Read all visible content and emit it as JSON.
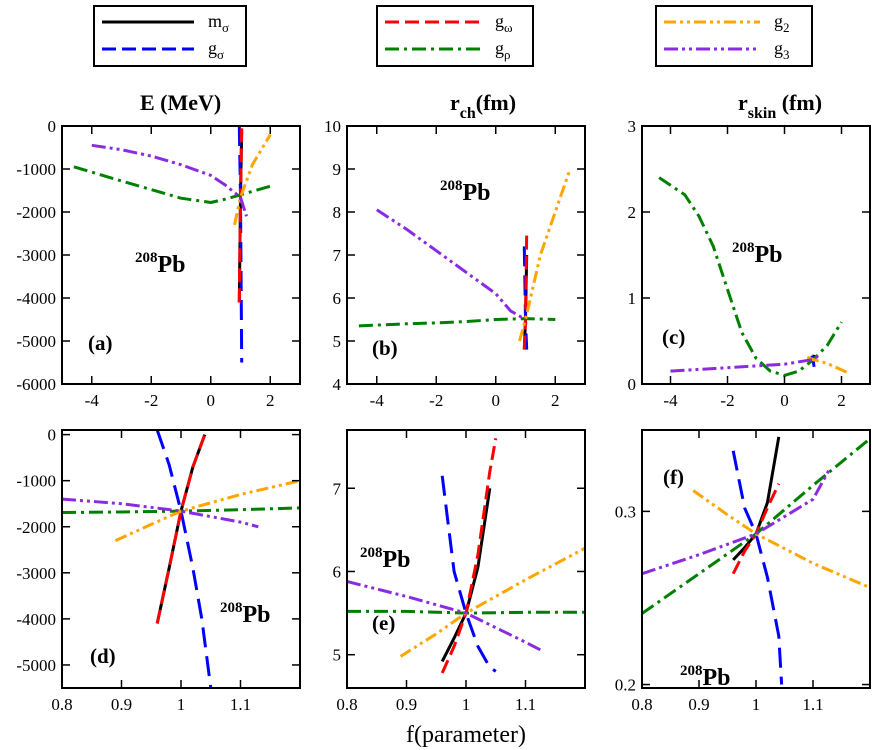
{
  "legend_groups": [
    {
      "entries": [
        {
          "base": "m",
          "sub": "σ",
          "color": "#000000",
          "dash": "solid"
        },
        {
          "base": "g",
          "sub": "σ",
          "color": "#0000ff",
          "dash": "dash"
        }
      ]
    },
    {
      "entries": [
        {
          "base": "g",
          "sub": "ω",
          "color": "#ff0000",
          "dash": "dash"
        },
        {
          "base": "g",
          "sub": "ρ",
          "color": "#008000",
          "dash": "dashdot"
        }
      ]
    },
    {
      "entries": [
        {
          "base": "g",
          "sub": "2",
          "color": "#ffa500",
          "dash": "dashdotdot"
        },
        {
          "base": "g",
          "sub": "3",
          "color": "#8a2be2",
          "dash": "dashdotdot2"
        }
      ]
    }
  ],
  "column_titles": [
    {
      "main": "E (MeV)",
      "sub": ""
    },
    {
      "main": "r",
      "sub": "ch",
      "tail": "(fm)"
    },
    {
      "main": "r",
      "sub": "skin",
      "tail": " (fm)"
    }
  ],
  "xlabel": "f(parameter)",
  "nucleus_label": {
    "sup": "208",
    "text": "Pb"
  },
  "chart_data": [
    {
      "type": "line",
      "panel_label": "(a)",
      "xlim": [
        -5,
        3
      ],
      "ylim": [
        -6000,
        0
      ],
      "xticks": [
        -4,
        -2,
        0,
        2
      ],
      "yticks": [
        0,
        -1000,
        -2000,
        -3000,
        -4000,
        -5000,
        -6000
      ],
      "series": [
        {
          "name": "m_σ",
          "x": [
            0.96,
            1.0,
            1.04
          ],
          "y": [
            -4100,
            -1660,
            -100
          ]
        },
        {
          "name": "g_σ",
          "x": [
            0.96,
            1.0,
            1.04
          ],
          "y": [
            0,
            -1660,
            -5500
          ]
        },
        {
          "name": "g_ω",
          "x": [
            0.96,
            1.0,
            1.04
          ],
          "y": [
            -4100,
            -1660,
            0
          ]
        },
        {
          "name": "g_ρ",
          "x": [
            -4.6,
            -3,
            -2,
            -1,
            0,
            0.5,
            1,
            2
          ],
          "y": [
            -950,
            -1280,
            -1480,
            -1680,
            -1780,
            -1700,
            -1600,
            -1400
          ]
        },
        {
          "name": "g_2",
          "x": [
            0.8,
            1.0,
            1.4,
            2.0
          ],
          "y": [
            -2300,
            -1660,
            -900,
            -200
          ]
        },
        {
          "name": "g_3",
          "x": [
            -4,
            -3,
            -2,
            -1,
            0,
            0.5,
            1,
            1.2
          ],
          "y": [
            -450,
            -550,
            -700,
            -900,
            -1150,
            -1380,
            -1660,
            -2100
          ]
        }
      ]
    },
    {
      "type": "line",
      "panel_label": "(b)",
      "xlim": [
        -5,
        3
      ],
      "ylim": [
        4,
        10
      ],
      "xticks": [
        -4,
        -2,
        0,
        2
      ],
      "yticks": [
        4,
        5,
        6,
        7,
        8,
        9,
        10
      ],
      "series": [
        {
          "name": "m_σ",
          "x": [
            0.96,
            1.0,
            1.04
          ],
          "y": [
            4.8,
            5.5,
            7.0
          ]
        },
        {
          "name": "g_σ",
          "x": [
            0.96,
            1.0,
            1.04
          ],
          "y": [
            7.2,
            5.5,
            4.8
          ]
        },
        {
          "name": "g_ω",
          "x": [
            0.96,
            1.0,
            1.04
          ],
          "y": [
            4.8,
            5.5,
            7.5
          ]
        },
        {
          "name": "g_ρ",
          "x": [
            -4.6,
            -3,
            -2,
            -1,
            0,
            1,
            2
          ],
          "y": [
            5.35,
            5.4,
            5.42,
            5.45,
            5.5,
            5.52,
            5.5
          ]
        },
        {
          "name": "g_2",
          "x": [
            0.8,
            1.0,
            1.5,
            2.5
          ],
          "y": [
            5.0,
            5.5,
            7.0,
            9.0
          ]
        },
        {
          "name": "g_3",
          "x": [
            -4,
            -3,
            -2,
            -1,
            0,
            0.5,
            1.0
          ],
          "y": [
            8.05,
            7.6,
            7.1,
            6.6,
            6.1,
            5.7,
            5.5
          ]
        }
      ]
    },
    {
      "type": "line",
      "panel_label": "(c)",
      "xlim": [
        -5,
        3
      ],
      "ylim": [
        0,
        3
      ],
      "xticks": [
        -4,
        -2,
        0,
        2
      ],
      "yticks": [
        0,
        1,
        2,
        3
      ],
      "series": [
        {
          "name": "m_σ",
          "x": [
            0.96,
            1.0,
            1.04
          ],
          "y": [
            0.27,
            0.285,
            0.34
          ]
        },
        {
          "name": "g_σ",
          "x": [
            0.96,
            1.0,
            1.04
          ],
          "y": [
            0.33,
            0.285,
            0.2
          ]
        },
        {
          "name": "g_ω",
          "x": [
            0.96,
            1.0,
            1.04
          ],
          "y": [
            0.26,
            0.285,
            0.31
          ]
        },
        {
          "name": "g_ρ",
          "x": [
            -4.4,
            -3.5,
            -3,
            -2.5,
            -2,
            -1.5,
            -1,
            -0.5,
            0,
            0.5,
            1,
            1.5,
            2
          ],
          "y": [
            2.4,
            2.2,
            1.95,
            1.6,
            1.1,
            0.6,
            0.3,
            0.15,
            0.1,
            0.15,
            0.28,
            0.45,
            0.72
          ]
        },
        {
          "name": "g_2",
          "x": [
            0.8,
            1.0,
            1.5,
            2.3
          ],
          "y": [
            0.31,
            0.285,
            0.24,
            0.12
          ]
        },
        {
          "name": "g_3",
          "x": [
            -4,
            -3,
            -2,
            -1,
            0,
            1,
            1.2
          ],
          "y": [
            0.15,
            0.17,
            0.19,
            0.21,
            0.23,
            0.285,
            0.33
          ]
        }
      ]
    },
    {
      "type": "line",
      "panel_label": "(d)",
      "xlim": [
        0.8,
        1.2
      ],
      "ylim": [
        -5500,
        100
      ],
      "xticks": [
        0.8,
        0.9,
        1,
        1.1
      ],
      "yticks": [
        0,
        -1000,
        -2000,
        -3000,
        -4000,
        -5000
      ],
      "series": [
        {
          "name": "m_σ",
          "x": [
            0.96,
            0.98,
            1.0,
            1.02,
            1.04
          ],
          "y": [
            -4100,
            -2900,
            -1660,
            -700,
            0
          ]
        },
        {
          "name": "g_σ",
          "x": [
            0.96,
            0.98,
            1.0,
            1.02,
            1.035,
            1.05
          ],
          "y": [
            100,
            -650,
            -1660,
            -2900,
            -4000,
            -5500
          ]
        },
        {
          "name": "g_ω",
          "x": [
            0.96,
            0.98,
            1.0,
            1.02,
            1.04
          ],
          "y": [
            -4100,
            -2900,
            -1660,
            -700,
            0
          ]
        },
        {
          "name": "g_ρ",
          "x": [
            0.8,
            0.9,
            1.0,
            1.1,
            1.2
          ],
          "y": [
            -1690,
            -1680,
            -1660,
            -1630,
            -1590
          ]
        },
        {
          "name": "g_2",
          "x": [
            0.89,
            0.95,
            1.0,
            1.1,
            1.2
          ],
          "y": [
            -2300,
            -1950,
            -1660,
            -1300,
            -1000
          ]
        },
        {
          "name": "g_3",
          "x": [
            0.8,
            0.9,
            1.0,
            1.1,
            1.13
          ],
          "y": [
            -1400,
            -1500,
            -1660,
            -1900,
            -2000
          ]
        }
      ]
    },
    {
      "type": "line",
      "panel_label": "(e)",
      "xlim": [
        0.8,
        1.2
      ],
      "ylim": [
        4.6,
        7.7
      ],
      "xticks": [
        0.8,
        0.9,
        1,
        1.1
      ],
      "yticks": [
        5,
        6,
        7
      ],
      "series": [
        {
          "name": "m_σ",
          "x": [
            0.96,
            0.98,
            1.0,
            1.02,
            1.04
          ],
          "y": [
            4.92,
            5.2,
            5.5,
            6.05,
            7.0
          ]
        },
        {
          "name": "g_σ",
          "x": [
            0.96,
            0.98,
            1.0,
            1.02,
            1.04,
            1.05
          ],
          "y": [
            7.15,
            6.0,
            5.5,
            5.1,
            4.85,
            4.8
          ]
        },
        {
          "name": "g_ω",
          "x": [
            0.96,
            0.98,
            1.0,
            1.02,
            1.04,
            1.05
          ],
          "y": [
            4.78,
            5.1,
            5.5,
            6.2,
            7.2,
            7.6
          ]
        },
        {
          "name": "g_ρ",
          "x": [
            0.8,
            0.9,
            1.0,
            1.1,
            1.2
          ],
          "y": [
            5.52,
            5.52,
            5.5,
            5.51,
            5.51
          ]
        },
        {
          "name": "g_2",
          "x": [
            0.89,
            0.95,
            1.0,
            1.1,
            1.2
          ],
          "y": [
            4.98,
            5.25,
            5.5,
            5.9,
            6.28
          ]
        },
        {
          "name": "g_3",
          "x": [
            0.8,
            0.9,
            1.0,
            1.1,
            1.13
          ],
          "y": [
            5.88,
            5.7,
            5.5,
            5.15,
            5.04
          ]
        }
      ]
    },
    {
      "type": "line",
      "panel_label": "(f)",
      "xlim": [
        0.8,
        1.2
      ],
      "ylim": [
        0.198,
        0.347
      ],
      "xticks": [
        0.8,
        0.9,
        1,
        1.1
      ],
      "yticks": [
        0.2,
        0.3
      ],
      "series": [
        {
          "name": "m_σ",
          "x": [
            0.96,
            0.98,
            1.0,
            1.02,
            1.04
          ],
          "y": [
            0.272,
            0.279,
            0.287,
            0.305,
            0.343
          ]
        },
        {
          "name": "g_σ",
          "x": [
            0.96,
            0.98,
            1.0,
            1.02,
            1.04,
            1.045
          ],
          "y": [
            0.335,
            0.302,
            0.287,
            0.262,
            0.228,
            0.2
          ]
        },
        {
          "name": "g_ω",
          "x": [
            0.96,
            0.98,
            1.0,
            1.02,
            1.04
          ],
          "y": [
            0.264,
            0.277,
            0.287,
            0.302,
            0.316
          ]
        },
        {
          "name": "g_ρ",
          "x": [
            0.8,
            0.9,
            1.0,
            1.1,
            1.2
          ],
          "y": [
            0.241,
            0.264,
            0.287,
            0.315,
            0.342
          ]
        },
        {
          "name": "g_2",
          "x": [
            0.89,
            0.95,
            1.0,
            1.1,
            1.2
          ],
          "y": [
            0.312,
            0.298,
            0.287,
            0.27,
            0.256
          ]
        },
        {
          "name": "g_3",
          "x": [
            0.8,
            0.9,
            1.0,
            1.1,
            1.13
          ],
          "y": [
            0.264,
            0.275,
            0.287,
            0.307,
            0.325
          ]
        }
      ]
    }
  ]
}
